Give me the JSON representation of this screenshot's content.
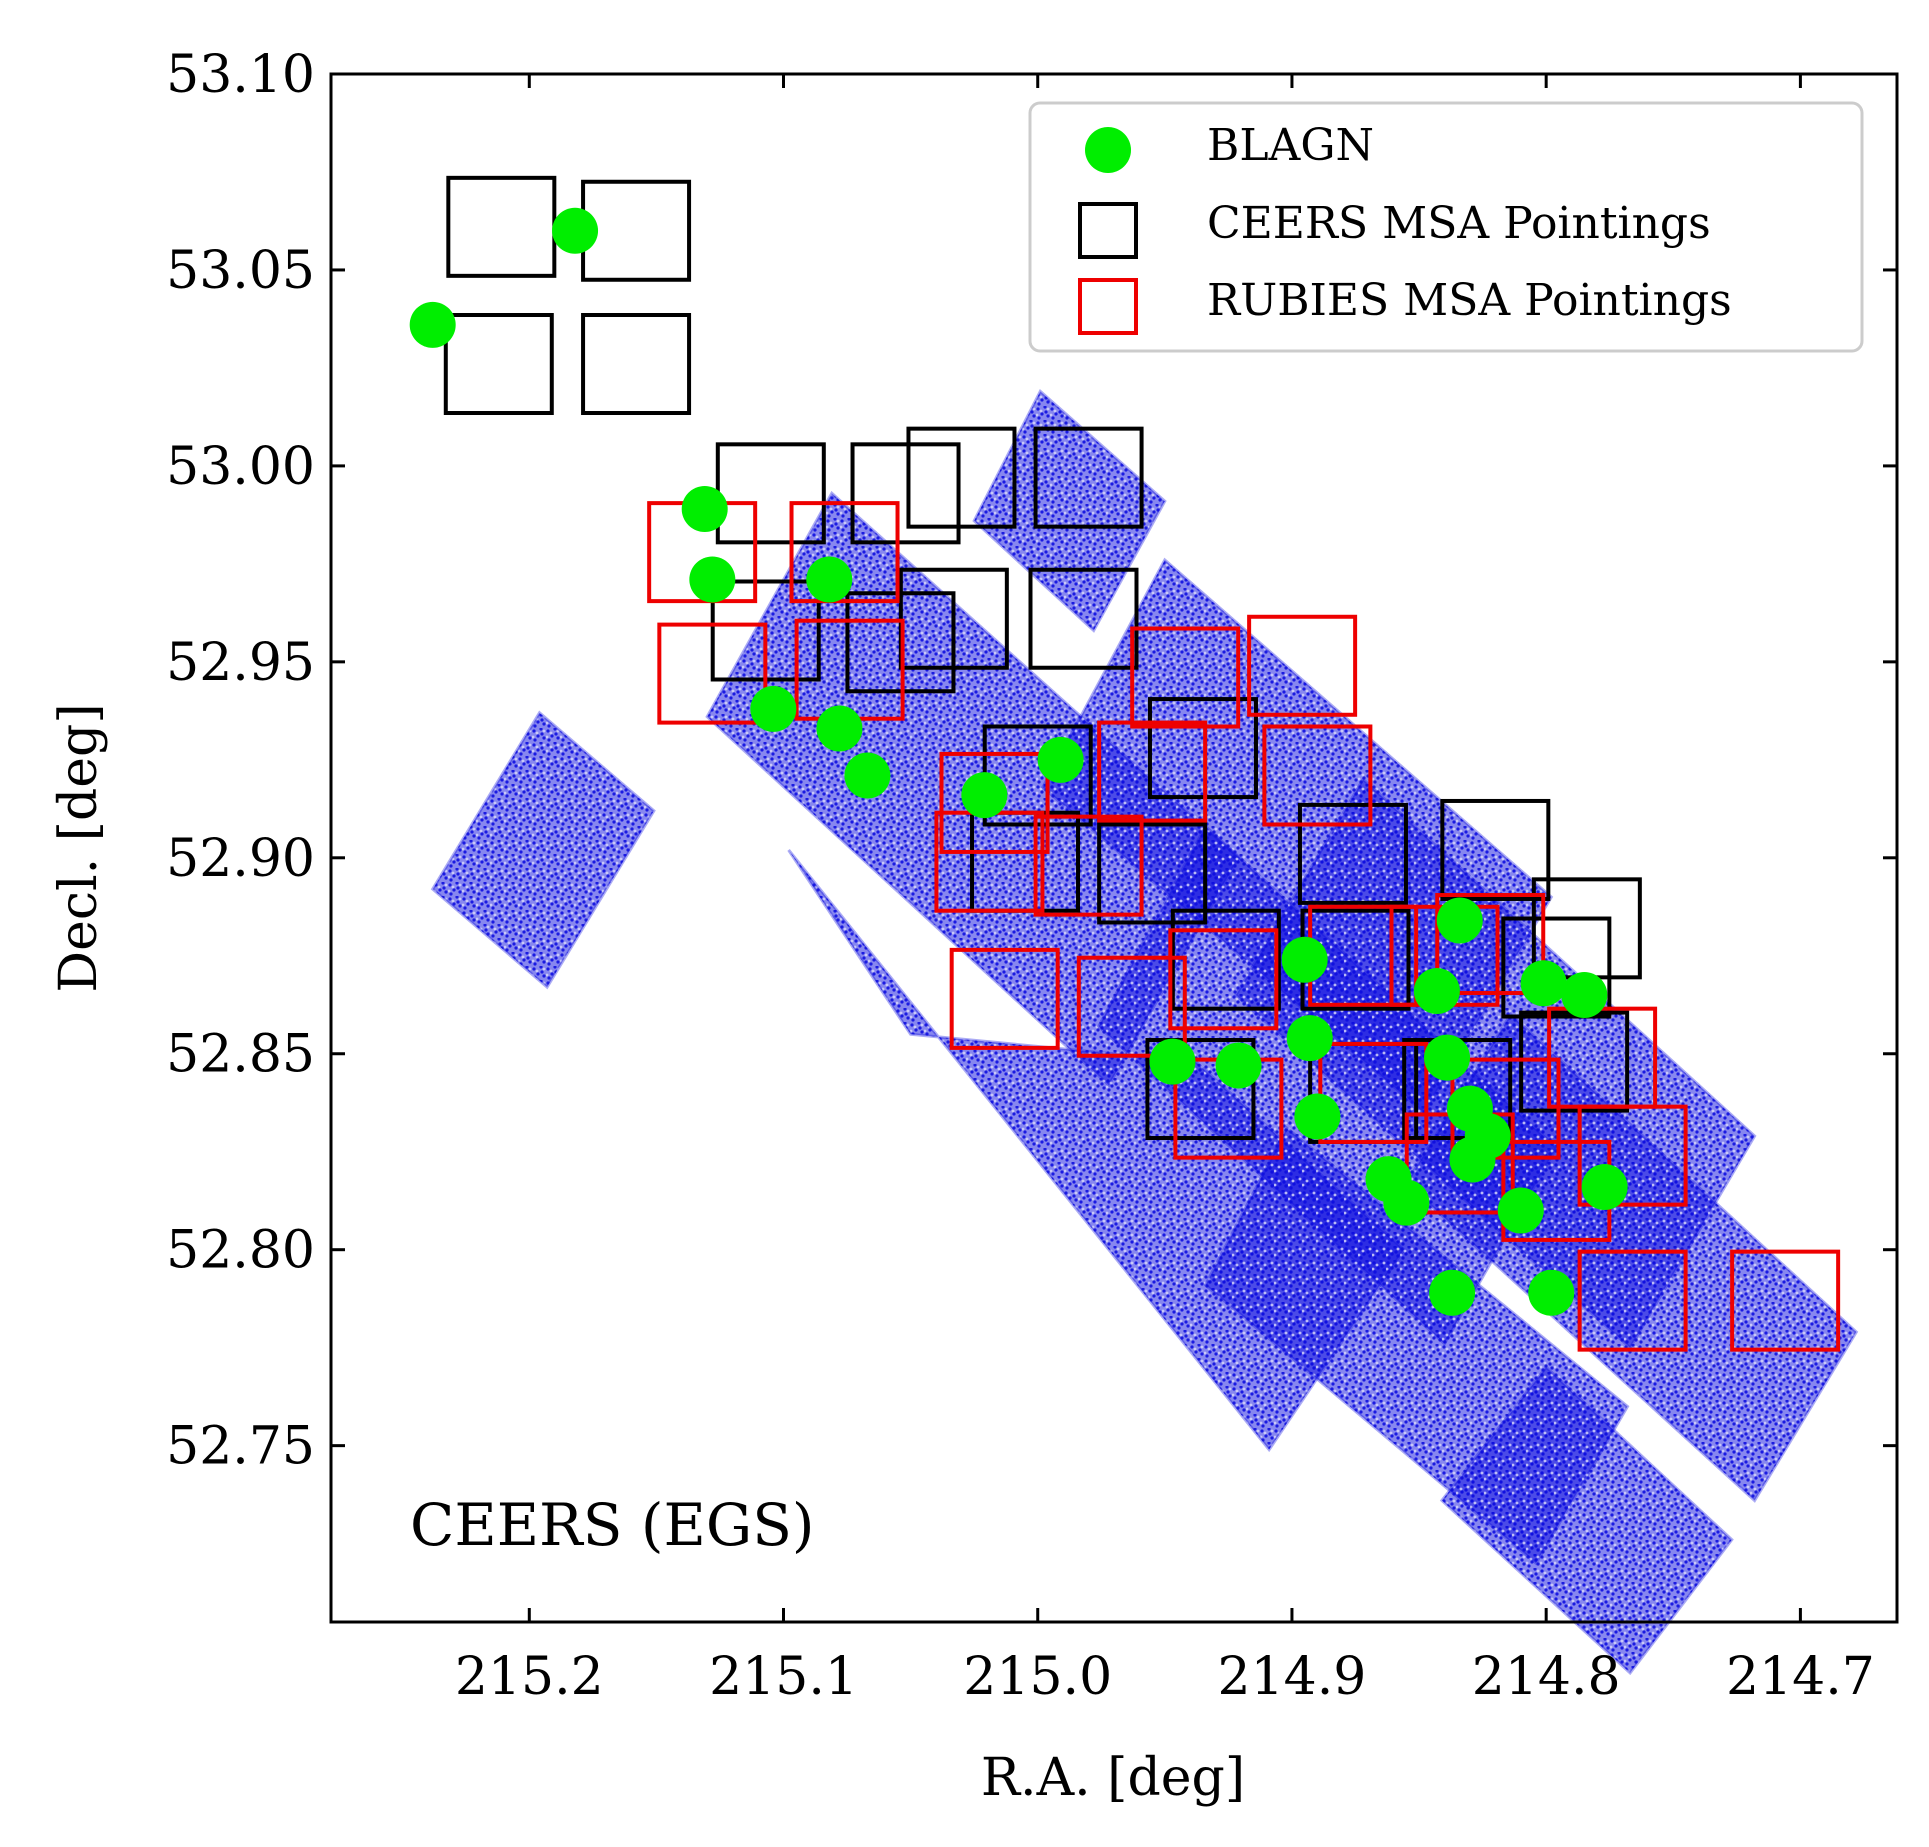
{
  "chart_data": {
    "type": "scatter",
    "xlabel": "R.A. [deg]",
    "ylabel": "Decl. [deg]",
    "xlim": [
      215.278,
      214.662
    ],
    "ylim": [
      52.705,
      53.1
    ],
    "x_inverted": true,
    "x_ticks": [
      215.2,
      215.1,
      215.0,
      214.9,
      214.8,
      214.7
    ],
    "x_tick_labels": [
      "215.2",
      "215.1",
      "215.0",
      "214.9",
      "214.8",
      "214.7"
    ],
    "y_ticks": [
      53.1,
      53.05,
      53.0,
      52.95,
      52.9,
      52.85,
      52.8,
      52.75
    ],
    "y_tick_labels": [
      "53.10",
      "53.05",
      "53.00",
      "52.95",
      "52.90",
      "52.85",
      "52.80",
      "52.75"
    ],
    "annotation": "CEERS (EGS)",
    "grid": false,
    "legend_position": "top-right",
    "legend": [
      {
        "label": "BLAGN",
        "marker": "circle",
        "color": "#00ee00"
      },
      {
        "label": "CEERS MSA Pointings",
        "marker": "square-outline",
        "color": "#000000"
      },
      {
        "label": "RUBIES MSA Pointings",
        "marker": "square-outline",
        "color": "#ee0000"
      }
    ],
    "footprint": {
      "description": "NIRCam imaging coverage",
      "color": "#1010e0",
      "tiles": [
        [
          [
            214.999,
            53.019
          ],
          [
            214.95,
            52.991
          ],
          [
            214.978,
            52.958
          ],
          [
            215.025,
            52.986
          ]
        ],
        [
          [
            215.081,
            52.993
          ],
          [
            214.921,
            52.9
          ],
          [
            214.972,
            52.842
          ],
          [
            215.13,
            52.936
          ]
        ],
        [
          [
            214.95,
            52.976
          ],
          [
            214.798,
            52.89
          ],
          [
            214.848,
            52.835
          ],
          [
            214.998,
            52.918
          ]
        ],
        [
          [
            214.872,
            52.92
          ],
          [
            214.718,
            52.829
          ],
          [
            214.767,
            52.775
          ],
          [
            214.922,
            52.865
          ]
        ],
        [
          [
            214.934,
            52.908
          ],
          [
            214.796,
            52.826
          ],
          [
            214.84,
            52.776
          ],
          [
            214.976,
            52.857
          ]
        ],
        [
          [
            214.814,
            52.86
          ],
          [
            214.678,
            52.779
          ],
          [
            214.718,
            52.736
          ],
          [
            214.855,
            52.817
          ]
        ],
        [
          [
            215.05,
            52.855
          ],
          [
            214.938,
            52.848
          ],
          [
            214.856,
            52.8
          ],
          [
            214.909,
            52.749
          ],
          [
            215.098,
            52.902
          ]
        ],
        [
          [
            214.902,
            52.831
          ],
          [
            214.768,
            52.76
          ],
          [
            214.804,
            52.72
          ],
          [
            214.934,
            52.791
          ]
        ],
        [
          [
            214.8,
            52.77
          ],
          [
            214.727,
            52.726
          ],
          [
            214.767,
            52.692
          ],
          [
            214.841,
            52.736
          ]
        ],
        [
          [
            215.196,
            52.937
          ],
          [
            215.151,
            52.912
          ],
          [
            215.193,
            52.867
          ],
          [
            215.238,
            52.892
          ]
        ]
      ]
    },
    "ceers_msa_pointings": [
      [
        215.211,
        53.061
      ],
      [
        215.158,
        53.06
      ],
      [
        215.212,
        53.026
      ],
      [
        215.158,
        53.026
      ],
      [
        215.105,
        52.993
      ],
      [
        215.052,
        52.993
      ],
      [
        215.03,
        52.997
      ],
      [
        214.98,
        52.997
      ],
      [
        215.107,
        52.958
      ],
      [
        215.054,
        52.955
      ],
      [
        215.033,
        52.961
      ],
      [
        214.982,
        52.961
      ],
      [
        215.0,
        52.921
      ],
      [
        214.935,
        52.928
      ],
      [
        215.005,
        52.899
      ],
      [
        214.955,
        52.896
      ],
      [
        214.876,
        52.901
      ],
      [
        214.82,
        52.902
      ],
      [
        214.926,
        52.874
      ],
      [
        214.875,
        52.874
      ],
      [
        214.796,
        52.872
      ],
      [
        214.784,
        52.882
      ],
      [
        214.936,
        52.841
      ],
      [
        214.872,
        52.84
      ],
      [
        214.835,
        52.841
      ],
      [
        214.789,
        52.848
      ]
    ],
    "rubies_msa_pointings": [
      [
        215.132,
        52.978
      ],
      [
        215.076,
        52.978
      ],
      [
        215.128,
        52.947
      ],
      [
        215.074,
        52.948
      ],
      [
        215.017,
        52.914
      ],
      [
        214.942,
        52.946
      ],
      [
        214.896,
        52.949
      ],
      [
        214.955,
        52.922
      ],
      [
        214.89,
        52.921
      ],
      [
        215.019,
        52.899
      ],
      [
        214.98,
        52.898
      ],
      [
        215.013,
        52.864
      ],
      [
        214.963,
        52.862
      ],
      [
        214.927,
        52.869
      ],
      [
        214.872,
        52.875
      ],
      [
        214.84,
        52.875
      ],
      [
        214.822,
        52.878
      ],
      [
        214.925,
        52.836
      ],
      [
        214.868,
        52.84
      ],
      [
        214.816,
        52.836
      ],
      [
        214.778,
        52.849
      ],
      [
        214.834,
        52.822
      ],
      [
        214.796,
        52.815
      ],
      [
        214.766,
        52.824
      ],
      [
        214.766,
        52.787
      ],
      [
        214.706,
        52.787
      ]
    ],
    "series": [
      {
        "name": "BLAGN",
        "x": [
          215.238,
          215.182,
          215.131,
          215.128,
          215.104,
          215.082,
          215.078,
          215.067,
          215.021,
          214.991,
          214.947,
          214.921,
          214.895,
          214.893,
          214.89,
          214.862,
          214.855,
          214.843,
          214.839,
          214.837,
          214.834,
          214.829,
          214.823,
          214.81,
          214.801,
          214.798,
          214.777,
          214.83,
          214.785
        ],
        "y": [
          53.036,
          53.06,
          52.989,
          52.971,
          52.938,
          52.971,
          52.933,
          52.921,
          52.916,
          52.925,
          52.848,
          52.847,
          52.874,
          52.854,
          52.834,
          52.818,
          52.812,
          52.866,
          52.849,
          52.789,
          52.884,
          52.823,
          52.829,
          52.81,
          52.868,
          52.789,
          52.816,
          52.836,
          52.865
        ]
      }
    ]
  }
}
